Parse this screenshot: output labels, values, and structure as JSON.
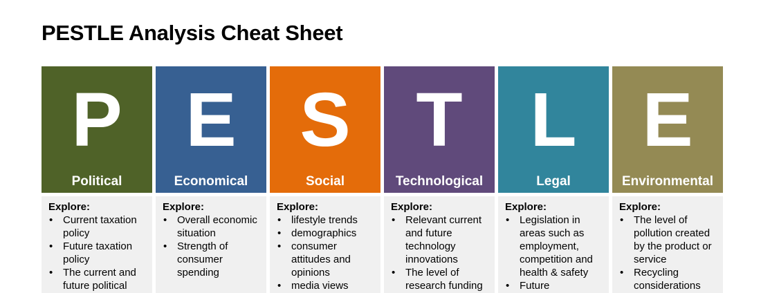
{
  "title": "PESTLE Analysis Cheat Sheet",
  "colors": {
    "political": "#4f6228",
    "economical": "#376092",
    "social": "#e46c0a",
    "technological": "#604a7b",
    "legal": "#31859c",
    "environmental": "#948a54"
  },
  "columns": [
    {
      "letter": "P",
      "category": "Political",
      "explore_label": "Explore:",
      "items": [
        "Current taxation policy",
        "Future taxation policy",
        "The current and future political"
      ]
    },
    {
      "letter": "E",
      "category": "Economical",
      "explore_label": "Explore:",
      "items": [
        "Overall economic situation",
        "Strength of consumer spending"
      ]
    },
    {
      "letter": "S",
      "category": "Social",
      "explore_label": "Explore:",
      "items": [
        "lifestyle trends",
        "demographics",
        "consumer attitudes and opinions",
        "media views"
      ]
    },
    {
      "letter": "T",
      "category": "Technological",
      "explore_label": "Explore:",
      "items": [
        "Relevant current and future technology innovations",
        "The level of research funding"
      ]
    },
    {
      "letter": "L",
      "category": "Legal",
      "explore_label": "Explore:",
      "items": [
        "Legislation in areas such as employment, competition and health & safety",
        "Future"
      ]
    },
    {
      "letter": "E",
      "category": "Environmental",
      "explore_label": "Explore:",
      "items": [
        "The level of pollution created by the product or service",
        "Recycling considerations"
      ]
    }
  ]
}
